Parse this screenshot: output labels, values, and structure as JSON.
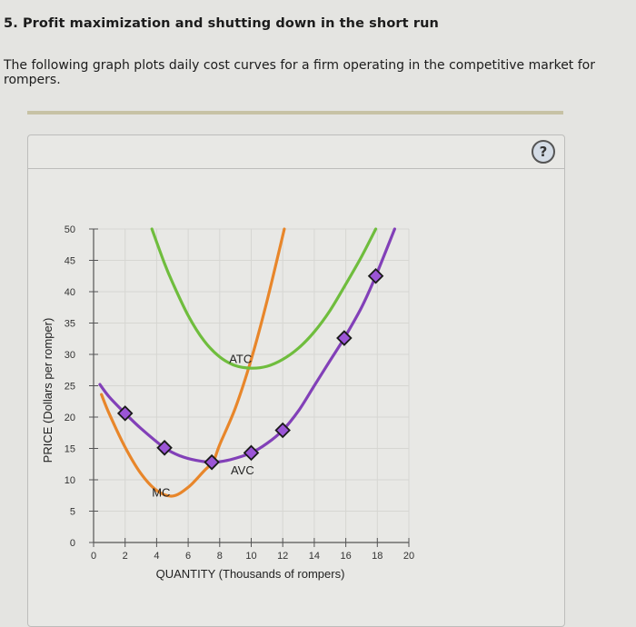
{
  "header": {
    "title": "5. Profit maximization and shutting down in the short run",
    "intro": "The following graph plots daily cost curves for a firm operating in the competitive market for rompers."
  },
  "panel": {
    "help_icon": "question-circle-icon",
    "help_label": "?"
  },
  "colors": {
    "mc": "#e8862a",
    "atc": "#6fbd3d",
    "avc": "#8240b8",
    "marker_fill": "#9b55d6",
    "marker_stroke": "#1a1a1a",
    "grid": "#d6d6d2",
    "axis": "#555555"
  },
  "chart_data": {
    "type": "line",
    "title": "",
    "xlabel": "QUANTITY (Thousands of rompers)",
    "ylabel": "PRICE (Dollars per romper)",
    "xlim": [
      0,
      20
    ],
    "ylim": [
      0,
      50
    ],
    "x_ticks": [
      0,
      2,
      4,
      6,
      8,
      10,
      12,
      14,
      16,
      18,
      20
    ],
    "y_ticks": [
      0,
      5,
      10,
      15,
      20,
      25,
      30,
      35,
      40,
      45,
      50
    ],
    "grid": true,
    "legend": "none (curves labeled inline)",
    "series": [
      {
        "name": "MC",
        "label_pos": [
          3.7,
          7.3
        ],
        "points": [
          [
            0.5,
            23.6
          ],
          [
            1,
            20.5
          ],
          [
            2,
            15.2
          ],
          [
            3,
            11
          ],
          [
            4,
            8.3
          ],
          [
            5,
            7.4
          ],
          [
            6,
            8.8
          ],
          [
            7,
            11.4
          ],
          [
            7.6,
            13
          ],
          [
            8,
            15.6
          ],
          [
            9,
            21.5
          ],
          [
            10,
            29.2
          ],
          [
            11,
            38.5
          ],
          [
            12.1,
            50
          ]
        ]
      },
      {
        "name": "ATC",
        "label_pos": [
          8.6,
          28.6
        ],
        "points": [
          [
            3.7,
            50
          ],
          [
            4.5,
            44.5
          ],
          [
            5,
            41.5
          ],
          [
            6,
            36.2
          ],
          [
            7,
            32.2
          ],
          [
            8,
            29.6
          ],
          [
            9,
            28.2
          ],
          [
            10,
            27.8
          ],
          [
            11,
            28.1
          ],
          [
            12,
            29.2
          ],
          [
            13,
            31
          ],
          [
            14,
            33.6
          ],
          [
            15,
            37
          ],
          [
            16,
            41.2
          ],
          [
            17,
            45.6
          ],
          [
            17.9,
            50
          ]
        ]
      },
      {
        "name": "AVC",
        "label_pos": [
          8.7,
          10.9
        ],
        "points": [
          [
            0.4,
            25.2
          ],
          [
            1,
            23.2
          ],
          [
            2,
            20.6
          ],
          [
            3,
            18.2
          ],
          [
            4.5,
            15.1
          ],
          [
            5.5,
            13.8
          ],
          [
            6.5,
            13.1
          ],
          [
            7.5,
            12.8
          ],
          [
            8.5,
            13.1
          ],
          [
            10,
            14.3
          ],
          [
            11,
            15.8
          ],
          [
            12,
            17.9
          ],
          [
            13,
            21
          ],
          [
            14,
            25
          ],
          [
            15,
            29
          ],
          [
            15.9,
            32.6
          ],
          [
            17,
            37.5
          ],
          [
            17.9,
            42.5
          ],
          [
            19.1,
            50
          ]
        ]
      }
    ],
    "markers": {
      "series": "AVC",
      "shape": "diamond",
      "points": [
        [
          2,
          20.6
        ],
        [
          4.5,
          15.1
        ],
        [
          7.5,
          12.8
        ],
        [
          10,
          14.3
        ],
        [
          12,
          17.9
        ],
        [
          15.9,
          32.6
        ],
        [
          17.9,
          42.5
        ]
      ]
    }
  }
}
